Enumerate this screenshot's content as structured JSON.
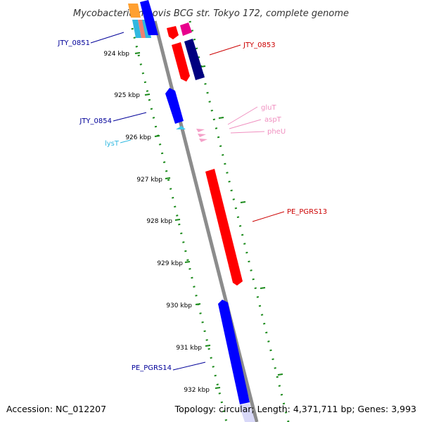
{
  "title": "Mycobacterium bovis BCG str. Tokyo 172, complete genome",
  "footer": {
    "accession": "Accession: NC_012207",
    "topology": "Topology: circular; Length: 4,371,711 bp; Genes: 3,993"
  },
  "colors": {
    "backbone": "#8c8c8c",
    "tick": "#1a8a1a",
    "forward_gene": "#ff0000",
    "reverse_gene": "#0000ff",
    "dark_forward_gene": "#000080",
    "trna_forward": "#f4a0c8",
    "trna_reverse": "#40c8e8",
    "label_red": "#cc0000",
    "label_blue": "#000099",
    "label_pink": "#f090c0",
    "label_cyan": "#30b8e0"
  },
  "kbp_labels": [
    "924 kbp",
    "925 kbp",
    "926 kbp",
    "927 kbp",
    "928 kbp",
    "929 kbp",
    "930 kbp",
    "931 kbp",
    "932 kbp"
  ],
  "gene_labels": {
    "jty_0851": "JTY_0851",
    "jty_0853": "JTY_0853",
    "glut": "gluT",
    "aspt": "aspT",
    "pheu": "pheU",
    "jty_0854": "JTY_0854",
    "lyst": "lysT",
    "pe_pgrs13": "PE_PGRS13",
    "pe_pgrs14": "PE_PGRS14"
  }
}
